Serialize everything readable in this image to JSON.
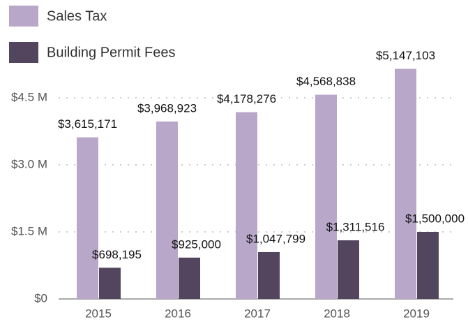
{
  "chart_data": {
    "type": "bar",
    "categories": [
      "2015",
      "2016",
      "2017",
      "2018",
      "2019"
    ],
    "series": [
      {
        "name": "Sales Tax",
        "color": "#b8a7c9",
        "values": [
          3615171,
          3968923,
          4178276,
          4568838,
          5147103
        ],
        "value_labels": [
          "$3,615,171",
          "$3,968,923",
          "$4,178,276",
          "$4,568,838",
          "$5,147,103"
        ]
      },
      {
        "name": "Building Permit Fees",
        "color": "#54455e",
        "values": [
          698195,
          925000,
          1047799,
          1311516,
          1500000
        ],
        "value_labels": [
          "$698,195",
          "$925,000",
          "$1,047,799",
          "$1,311,516",
          "$1,500,000"
        ]
      }
    ],
    "ylim": [
      0,
      6000000
    ],
    "yticks": [
      {
        "value": 0,
        "label": "$0"
      },
      {
        "value": 1500000,
        "label": "$1.5 M"
      },
      {
        "value": 3000000,
        "label": "$3.0 M"
      },
      {
        "value": 4500000,
        "label": "$4.5 M"
      }
    ],
    "grid": true,
    "legend": "top-left"
  }
}
